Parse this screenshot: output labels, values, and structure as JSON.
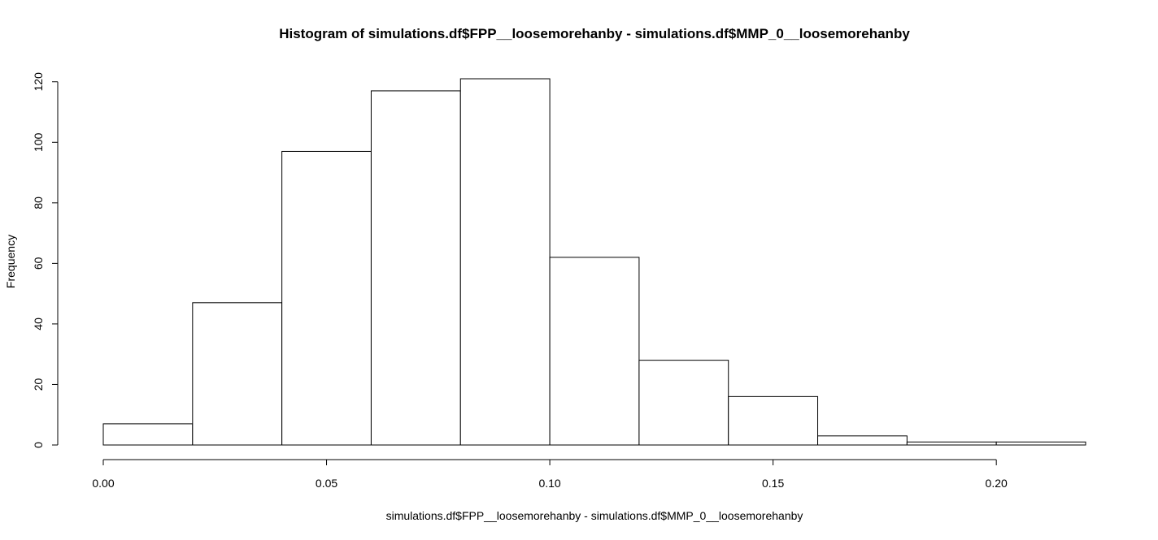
{
  "chart_data": {
    "type": "bar",
    "subtype": "histogram",
    "title": "Histogram of simulations.df$FPP__loosemorehanby - simulations.df$MMP_0__loosemorehanby",
    "xlabel": "simulations.df$FPP__loosemorehanby - simulations.df$MMP_0__loosemorehanby",
    "ylabel": "Frequency",
    "bins": [
      {
        "start": 0.0,
        "end": 0.02,
        "count": 7
      },
      {
        "start": 0.02,
        "end": 0.04,
        "count": 47
      },
      {
        "start": 0.04,
        "end": 0.06,
        "count": 97
      },
      {
        "start": 0.06,
        "end": 0.08,
        "count": 117
      },
      {
        "start": 0.08,
        "end": 0.1,
        "count": 121
      },
      {
        "start": 0.1,
        "end": 0.12,
        "count": 62
      },
      {
        "start": 0.12,
        "end": 0.14,
        "count": 28
      },
      {
        "start": 0.14,
        "end": 0.16,
        "count": 16
      },
      {
        "start": 0.16,
        "end": 0.18,
        "count": 3
      },
      {
        "start": 0.18,
        "end": 0.2,
        "count": 1
      },
      {
        "start": 0.2,
        "end": 0.22,
        "count": 1
      }
    ],
    "xlim": [
      0.0,
      0.22
    ],
    "ylim": [
      0,
      121
    ],
    "xticks": [
      0.0,
      0.05,
      0.1,
      0.15,
      0.2
    ],
    "xtick_labels": [
      "0.00",
      "0.05",
      "0.10",
      "0.15",
      "0.20"
    ],
    "yticks": [
      0,
      20,
      40,
      60,
      80,
      100,
      120
    ],
    "ytick_labels": [
      "0",
      "20",
      "40",
      "60",
      "80",
      "100",
      "120"
    ],
    "grid": false,
    "bar_fill": "#ffffff",
    "bar_stroke": "#000000"
  }
}
